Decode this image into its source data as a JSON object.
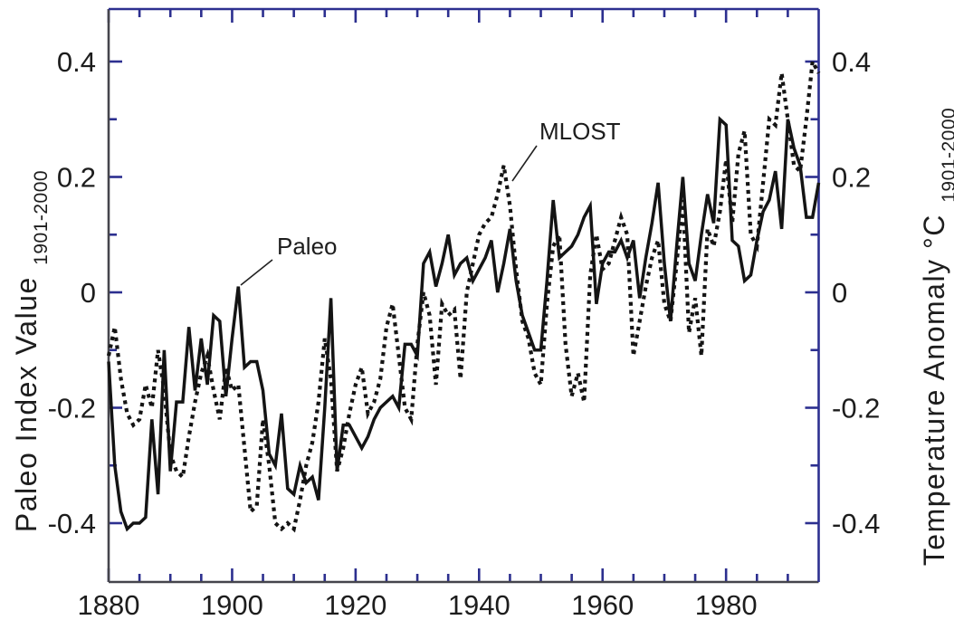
{
  "figure": {
    "background": "#ffffff",
    "axis_dark": "#45454c",
    "axis_navy": "#2d3090",
    "tick_color": "#2c2f8f",
    "line_color": "#141414",
    "text_color": "#1d1d1d"
  },
  "y_axis_left": {
    "title": "Paleo Index Value",
    "title_subscript": "1901-2000",
    "tick_labels": [
      "0.4",
      "0.2",
      "0",
      "-0.2",
      "-0.4"
    ]
  },
  "y_axis_right": {
    "title": "Temperature Anomaly °C",
    "title_subscript": "1901-2000",
    "tick_labels": [
      "0.4",
      "0.2",
      "0",
      "-0.2",
      "-0.4"
    ]
  },
  "x_axis": {
    "tick_labels": [
      "1880",
      "1900",
      "1920",
      "1940",
      "1960",
      "1980"
    ]
  },
  "series_labels": {
    "paleo": "Paleo",
    "mlost": "MLOST"
  },
  "chart_data": {
    "type": "line",
    "title": "",
    "xlabel": "",
    "ylabel_left": "Paleo Index Value (1901-2000)",
    "ylabel_right": "Temperature Anomaly °C (1901-2000)",
    "xlim": [
      1880,
      1995
    ],
    "ylim": [
      -0.5,
      0.49
    ],
    "grid": false,
    "legend_position": "inline-annotations",
    "x_major_ticks": [
      1880,
      1900,
      1920,
      1940,
      1960,
      1980
    ],
    "x_minor_step": 5,
    "y_major_ticks": [
      0.4,
      0.2,
      0,
      -0.2,
      -0.4
    ],
    "y_minor_ticks": [
      0.3,
      0.1,
      -0.1,
      -0.3
    ],
    "years": {
      "start": 1880,
      "end": 1995,
      "step": 1
    },
    "series": [
      {
        "name": "Paleo",
        "line_style": "solid",
        "values": [
          -0.12,
          -0.3,
          -0.38,
          -0.41,
          -0.4,
          -0.4,
          -0.39,
          -0.22,
          -0.35,
          -0.1,
          -0.31,
          -0.19,
          -0.19,
          -0.06,
          -0.17,
          -0.08,
          -0.16,
          -0.04,
          -0.05,
          -0.18,
          -0.08,
          0.01,
          -0.13,
          -0.12,
          -0.12,
          -0.17,
          -0.28,
          -0.3,
          -0.21,
          -0.34,
          -0.35,
          -0.3,
          -0.33,
          -0.32,
          -0.36,
          -0.2,
          -0.01,
          -0.31,
          -0.23,
          -0.23,
          -0.25,
          -0.27,
          -0.25,
          -0.22,
          -0.2,
          -0.19,
          -0.18,
          -0.2,
          -0.09,
          -0.09,
          -0.11,
          0.05,
          0.07,
          0.01,
          0.05,
          0.1,
          0.03,
          0.05,
          0.06,
          0.02,
          0.04,
          0.06,
          0.09,
          0.0,
          0.05,
          0.11,
          0.02,
          -0.04,
          -0.07,
          -0.1,
          -0.1,
          0.02,
          0.16,
          0.06,
          0.07,
          0.08,
          0.1,
          0.13,
          0.15,
          -0.02,
          0.05,
          0.07,
          0.07,
          0.09,
          0.06,
          0.09,
          -0.01,
          0.06,
          0.12,
          0.19,
          0.05,
          -0.05,
          0.08,
          0.2,
          0.05,
          0.02,
          0.1,
          0.17,
          0.12,
          0.3,
          0.29,
          0.09,
          0.08,
          0.02,
          0.03,
          0.09,
          0.14,
          0.16,
          0.21,
          0.11,
          0.3,
          0.25,
          0.22,
          0.13,
          0.13,
          0.19
        ]
      },
      {
        "name": "MLOST",
        "line_style": "dashed",
        "values": [
          -0.11,
          -0.06,
          -0.15,
          -0.21,
          -0.23,
          -0.22,
          -0.16,
          -0.2,
          -0.1,
          -0.17,
          -0.28,
          -0.31,
          -0.32,
          -0.25,
          -0.19,
          -0.14,
          -0.11,
          -0.17,
          -0.22,
          -0.13,
          -0.17,
          -0.16,
          -0.27,
          -0.38,
          -0.37,
          -0.22,
          -0.3,
          -0.4,
          -0.41,
          -0.4,
          -0.41,
          -0.36,
          -0.3,
          -0.26,
          -0.19,
          -0.08,
          -0.15,
          -0.31,
          -0.27,
          -0.21,
          -0.16,
          -0.13,
          -0.21,
          -0.19,
          -0.15,
          -0.06,
          -0.02,
          -0.11,
          -0.2,
          -0.22,
          -0.09,
          0.0,
          -0.04,
          -0.16,
          -0.02,
          -0.04,
          -0.03,
          -0.15,
          0.0,
          0.05,
          0.1,
          0.12,
          0.13,
          0.17,
          0.22,
          0.15,
          0.04,
          -0.05,
          -0.08,
          -0.14,
          -0.16,
          -0.02,
          0.08,
          0.1,
          -0.09,
          -0.18,
          -0.14,
          -0.19,
          0.03,
          0.1,
          0.04,
          0.05,
          0.09,
          0.13,
          0.1,
          -0.11,
          -0.05,
          0.01,
          0.06,
          0.09,
          -0.02,
          -0.05,
          0.05,
          0.16,
          -0.07,
          -0.01,
          -0.11,
          0.11,
          0.08,
          0.14,
          0.23,
          0.12,
          0.24,
          0.28,
          0.1,
          0.08,
          0.19,
          0.3,
          0.29,
          0.38,
          0.3,
          0.22,
          0.21,
          0.3,
          0.4,
          0.38
        ]
      }
    ]
  }
}
